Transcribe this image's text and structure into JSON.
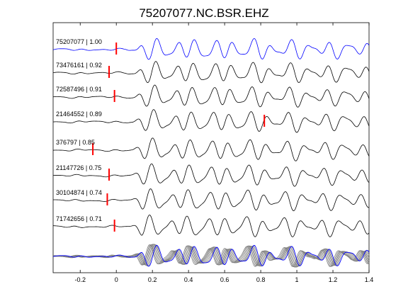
{
  "chart_data": {
    "type": "line",
    "title": "75207077.NC.BSR.EHZ",
    "xlabel": "",
    "ylabel": "",
    "xlim": [
      -0.35,
      1.4
    ],
    "x_ticks": [
      -0.2,
      0,
      0.2,
      0.4,
      0.6,
      0.8,
      1,
      1.2,
      1.4
    ],
    "x_tick_labels": [
      "-0.2",
      "0",
      "0.2",
      "0.4",
      "0.6",
      "0.8",
      "1",
      "1.2",
      "1.4"
    ],
    "grid": false,
    "colors": {
      "master": "#0000ff",
      "trace": "#000000",
      "stack_gray": "#808080",
      "pick": "#ff0000",
      "axes": "#000000"
    },
    "series": [
      {
        "name": "75207077 | 1.00",
        "pick_time": 0.0,
        "color": "#0000ff",
        "seed": 1
      },
      {
        "name": "73476161 | 0.92",
        "pick_time": -0.04,
        "color": "#000000",
        "seed": 2
      },
      {
        "name": "72587496 | 0.91",
        "pick_time": -0.01,
        "color": "#000000",
        "seed": 3
      },
      {
        "name": "21464552 | 0.89",
        "pick_time": 0.82,
        "color": "#000000",
        "seed": 4
      },
      {
        "name": "376797 | 0.85",
        "pick_time": -0.13,
        "color": "#000000",
        "seed": 5
      },
      {
        "name": "21147726 | 0.75",
        "pick_time": -0.04,
        "color": "#000000",
        "seed": 6
      },
      {
        "name": "30104874 | 0.74",
        "pick_time": -0.05,
        "color": "#000000",
        "seed": 7
      },
      {
        "name": "71742656 | 0.71",
        "pick_time": -0.01,
        "color": "#000000",
        "seed": 8
      }
    ],
    "stack": {
      "description_series": "overlay of all traces",
      "master_color": "#0000ff",
      "others_color": "#808080"
    }
  }
}
